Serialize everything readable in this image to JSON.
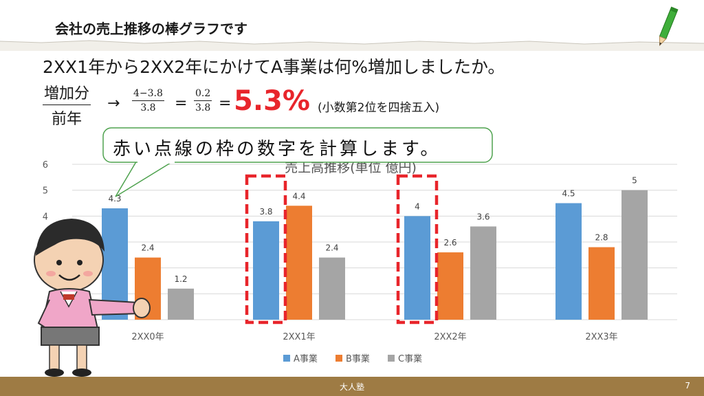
{
  "slide": {
    "title": "会社の売上推移の棒グラフです",
    "question": "2XX1年から2XX2年にかけてA事業は何%増加しましたか。",
    "formula": {
      "label_num": "増加分",
      "label_den": "前年",
      "arrow": "→",
      "step1_num": "4−3.8",
      "step1_den": "3.8",
      "eq": "=",
      "step2_num": "0.2",
      "step2_den": "3.8",
      "eq2": "=",
      "answer": "5.3%",
      "note": "(小数第2位を四捨五入)"
    },
    "bubble_text": "赤い点線の枠の数字を計算します。",
    "footer_center": "大人塾",
    "page_number": "7"
  },
  "colors": {
    "series_a": "#5b9bd5",
    "series_b": "#ed7d31",
    "series_c": "#a5a5a5",
    "highlight": "#e8252b",
    "footer": "#9e7b44"
  },
  "chart_data": {
    "type": "bar",
    "title": "売上高推移(単位 億円)",
    "categories": [
      "2XX0年",
      "2XX1年",
      "2XX2年",
      "2XX3年"
    ],
    "series": [
      {
        "name": "A事業",
        "values": [
          4.3,
          3.8,
          4,
          4.5
        ]
      },
      {
        "name": "B事業",
        "values": [
          2.4,
          4.4,
          2.6,
          2.8
        ]
      },
      {
        "name": "C事業",
        "values": [
          1.2,
          2.4,
          3.6,
          5
        ]
      }
    ],
    "ytick_labels": [
      "4",
      "5",
      "6"
    ],
    "ylim": [
      0,
      6
    ],
    "grid": true,
    "legend": "bottom",
    "highlighted": [
      {
        "series": "A事業",
        "category": "2XX1年"
      },
      {
        "series": "A事業",
        "category": "2XX2年"
      }
    ]
  }
}
